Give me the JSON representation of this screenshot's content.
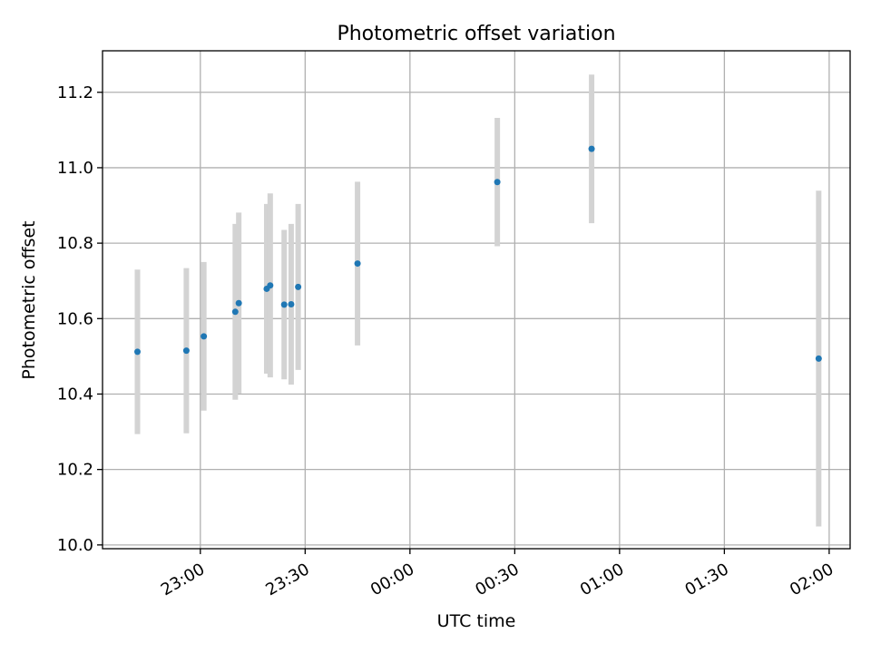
{
  "chart_data": {
    "type": "scatter",
    "title": "Photometric offset variation",
    "xlabel": "UTC time",
    "ylabel": "Photometric offset",
    "grid": true,
    "legend": "none",
    "xlim": [
      "22:32",
      "02:06"
    ],
    "ylim": [
      9.99,
      11.31
    ],
    "x_ticks": [
      "23:00",
      "23:30",
      "00:00",
      "00:30",
      "01:00",
      "01:30",
      "02:00"
    ],
    "y_ticks": [
      10.0,
      10.2,
      10.4,
      10.6,
      10.8,
      11.0,
      11.2
    ],
    "series": [
      {
        "marker_color": "#1f77b4",
        "errorbar_color": "#d3d3d3",
        "points": [
          {
            "x": "22:42",
            "y": 10.512,
            "err": 0.218
          },
          {
            "x": "22:56",
            "y": 10.515,
            "err": 0.219
          },
          {
            "x": "23:01",
            "y": 10.553,
            "err": 0.197
          },
          {
            "x": "23:10",
            "y": 10.618,
            "err": 0.233
          },
          {
            "x": "23:11",
            "y": 10.641,
            "err": 0.24
          },
          {
            "x": "23:19",
            "y": 10.679,
            "err": 0.225
          },
          {
            "x": "23:20",
            "y": 10.688,
            "err": 0.244
          },
          {
            "x": "23:24",
            "y": 10.637,
            "err": 0.198
          },
          {
            "x": "23:26",
            "y": 10.638,
            "err": 0.213
          },
          {
            "x": "23:28",
            "y": 10.684,
            "err": 0.22
          },
          {
            "x": "23:45",
            "y": 10.746,
            "err": 0.217
          },
          {
            "x": "00:25",
            "y": 10.962,
            "err": 0.17
          },
          {
            "x": "00:52",
            "y": 11.05,
            "err": 0.197
          },
          {
            "x": "01:57",
            "y": 10.494,
            "err": 0.445
          }
        ]
      }
    ]
  }
}
